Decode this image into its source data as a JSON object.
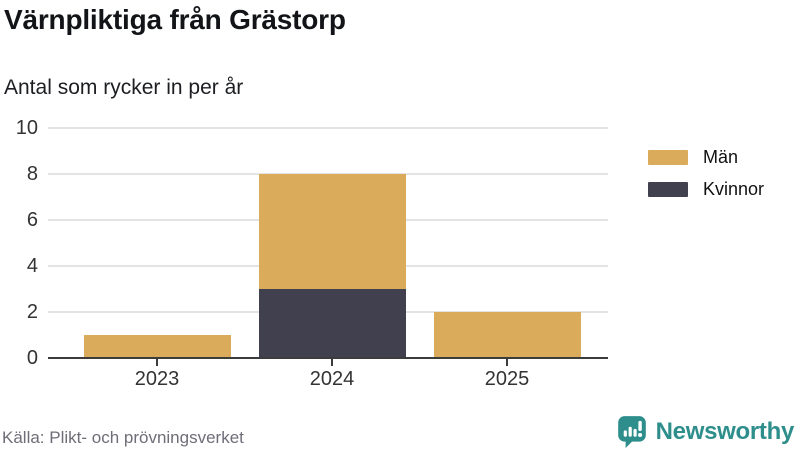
{
  "header": {
    "title": "Värnpliktiga från Grästorp",
    "subtitle": "Antal som rycker in per år"
  },
  "chart_data": {
    "type": "bar",
    "stacked": true,
    "title": "Värnpliktiga från Grästorp",
    "subtitle": "Antal som rycker in per år",
    "categories": [
      "2023",
      "2024",
      "2025"
    ],
    "series": [
      {
        "name": "Kvinnor",
        "color": "#41404f",
        "values": [
          0,
          3,
          0
        ]
      },
      {
        "name": "Män",
        "color": "#d9ab5b",
        "values": [
          1,
          5,
          2
        ]
      }
    ],
    "totals": [
      1,
      8,
      2
    ],
    "legend": [
      {
        "label": "Män",
        "color": "#d9ab5b"
      },
      {
        "label": "Kvinnor",
        "color": "#41404f"
      }
    ],
    "legend_position": "right",
    "xlabel": "",
    "ylabel": "",
    "ylim": [
      0,
      10
    ],
    "yticks": [
      0,
      2,
      4,
      6,
      8,
      10
    ],
    "grid": true
  },
  "footer": {
    "source": "Källa: Plikt- och prövningsverket",
    "brand": "Newsworthy"
  },
  "colors": {
    "accent_gold": "#d9ab5b",
    "accent_dark": "#41404f",
    "brand_teal": "#2e8e8c",
    "gridline": "#e3e3e3",
    "axis": "#3c3c3c",
    "text": "#121418",
    "muted": "#6e6e78"
  }
}
